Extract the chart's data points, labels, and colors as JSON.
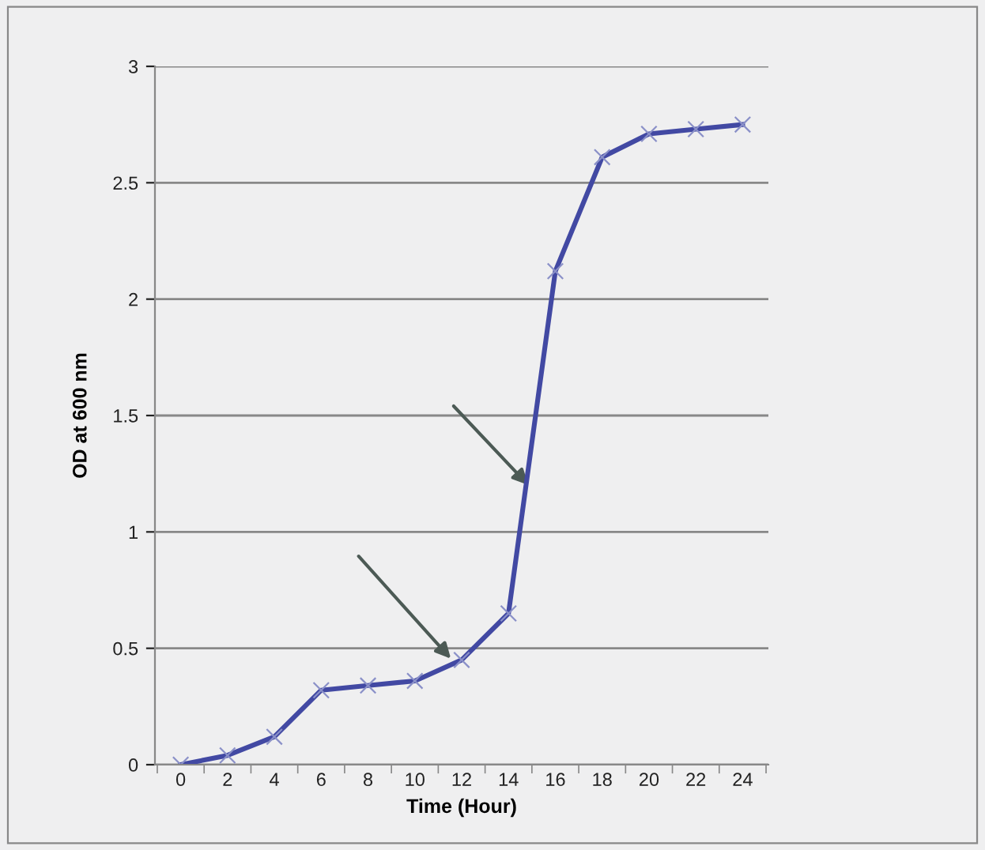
{
  "chart_data": {
    "type": "line",
    "xlabel": "Time (Hour)",
    "ylabel": "OD at 600 nm",
    "categories": [
      "0",
      "2",
      "4",
      "6",
      "8",
      "10",
      "12",
      "14",
      "16",
      "18",
      "20",
      "22",
      "24"
    ],
    "series": [
      {
        "color": "#4249a3",
        "values": [
          0,
          0.04,
          0.12,
          0.32,
          0.34,
          0.36,
          0.45,
          0.65,
          2.12,
          2.61,
          2.71,
          2.73,
          2.75
        ]
      }
    ],
    "ylim": [
      0,
      3
    ],
    "yticks": [
      0,
      0.5,
      1,
      1.5,
      2,
      2.5,
      3
    ],
    "grid": "y",
    "marker": "cross",
    "line_style": "solid"
  }
}
